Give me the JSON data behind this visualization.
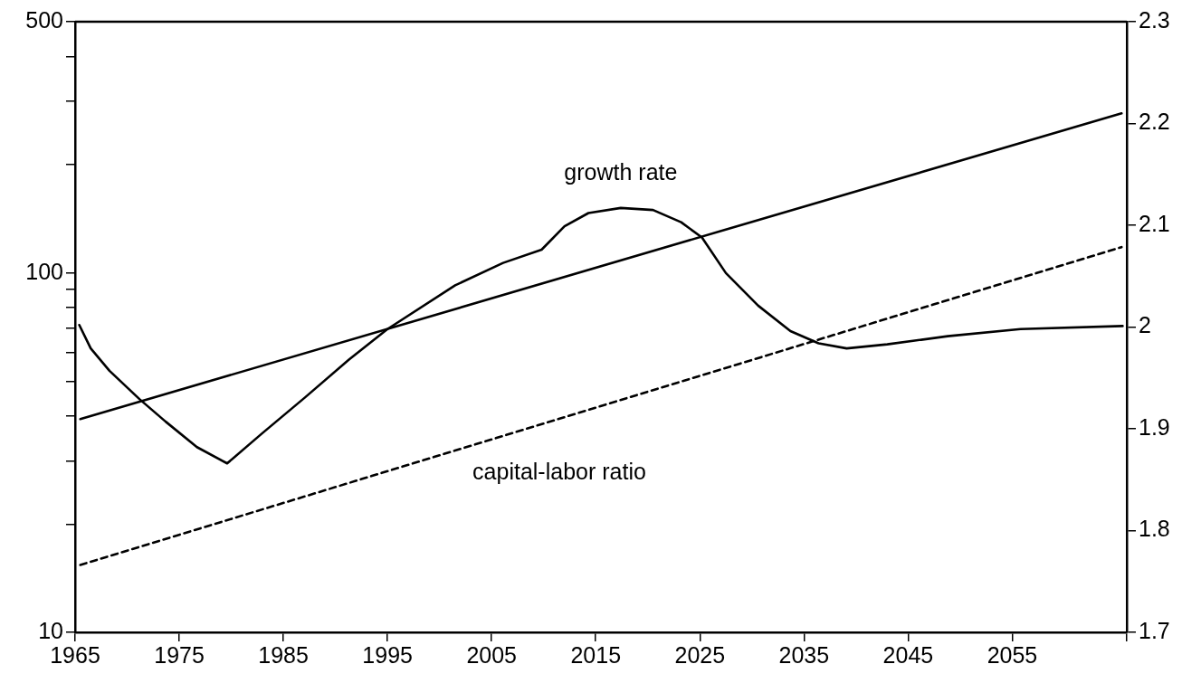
{
  "chart_data": {
    "type": "line",
    "log": "y",
    "grid": false,
    "legend": false,
    "xlim": [
      1965,
      2066
    ],
    "xticks": [
      1965,
      1975,
      1985,
      1995,
      2005,
      2015,
      2025,
      2035,
      2045,
      2055,
      {
        "value": 2066,
        "label": null
      }
    ],
    "ylim": [
      10,
      500
    ],
    "yticks": [
      10,
      {
        "value": 20,
        "label": null
      },
      {
        "value": 30,
        "label": null
      },
      {
        "value": 40,
        "label": null
      },
      {
        "value": 50,
        "label": null
      },
      {
        "value": 60,
        "label": null
      },
      {
        "value": 70,
        "label": null
      },
      {
        "value": 80,
        "label": null
      },
      {
        "value": 90,
        "label": null
      },
      100,
      {
        "value": 200,
        "label": null
      },
      {
        "value": 300,
        "label": null
      },
      {
        "value": 400,
        "label": null
      },
      500
    ],
    "y2lim": [
      1.7,
      2.3
    ],
    "y2ticks": [
      1.7,
      1.8,
      1.9,
      2,
      2.1,
      2.2,
      2.3
    ],
    "series": [
      {
        "color": "#000000",
        "line_style": "solid",
        "x": [
          1965.5,
          2065.5
        ],
        "values": [
          39.2,
          278
        ]
      },
      {
        "name": "capital-labor ratio",
        "color": "#000000",
        "line_style": "dashed",
        "x": [
          1965.5,
          2065.5
        ],
        "values": [
          15.4,
          118
        ]
      },
      {
        "name": "growth rate",
        "color": "#000000",
        "line_style": "solid",
        "axis": "y2",
        "x": [
          1965.4,
          1966.5,
          1968.3,
          1971.2,
          1973.7,
          1976.7,
          1979.6,
          1982.9,
          1987.1,
          1991.3,
          1995,
          2001.5,
          2006.1,
          2009.8,
          2012,
          2014.3,
          2017.4,
          2020.5,
          2023.2,
          2025.2,
          2027.5,
          2030.6,
          2033.7,
          2036.4,
          2039.1,
          2043,
          2048.8,
          2055.8,
          2065.6
        ],
        "values": [
          2.002,
          1.979,
          1.957,
          1.929,
          1.907,
          1.882,
          1.866,
          1.895,
          1.931,
          1.968,
          1.998,
          2.041,
          2.063,
          2.076,
          2.099,
          2.112,
          2.117,
          2.115,
          2.103,
          2.088,
          2.053,
          2.021,
          1.996,
          1.984,
          1.979,
          1.983,
          1.991,
          1.998,
          2.001
        ]
      }
    ]
  }
}
